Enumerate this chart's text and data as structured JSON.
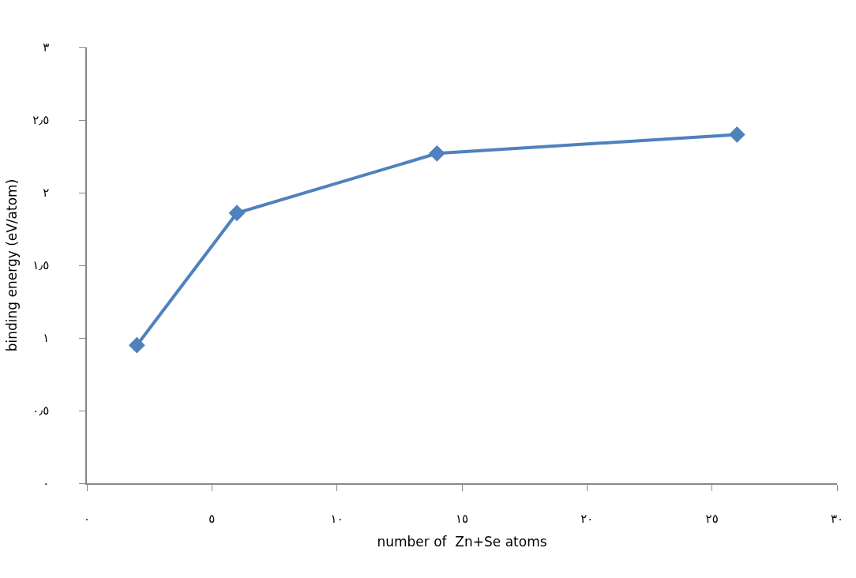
{
  "chart_data": {
    "type": "line",
    "xlabel": "number of  Zn+Se atoms",
    "ylabel": "binding energy (eV/atom)",
    "x": [
      2,
      6,
      14,
      26
    ],
    "series": [
      {
        "color": "#4f81bd",
        "values": [
          0.95,
          1.86,
          2.27,
          2.4
        ]
      }
    ],
    "xlim": [
      0,
      30
    ],
    "ylim": [
      0,
      3
    ],
    "xticks": [
      {
        "value": 0,
        "label": "٠"
      },
      {
        "value": 5,
        "label": "٥"
      },
      {
        "value": 10,
        "label": "١٠"
      },
      {
        "value": 15,
        "label": "١٥"
      },
      {
        "value": 20,
        "label": "٢٠"
      },
      {
        "value": 25,
        "label": "٢٥"
      },
      {
        "value": 30,
        "label": "٣٠"
      }
    ],
    "yticks": [
      {
        "value": 0,
        "label": "٠"
      },
      {
        "value": 0.5,
        "label": "٠٫٥"
      },
      {
        "value": 1,
        "label": "١"
      },
      {
        "value": 1.5,
        "label": "١٫٥"
      },
      {
        "value": 2,
        "label": "٢"
      },
      {
        "value": 2.5,
        "label": "٢٫٥"
      },
      {
        "value": 3,
        "label": "٣"
      }
    ],
    "marker": "diamond",
    "line_style": "solid"
  }
}
